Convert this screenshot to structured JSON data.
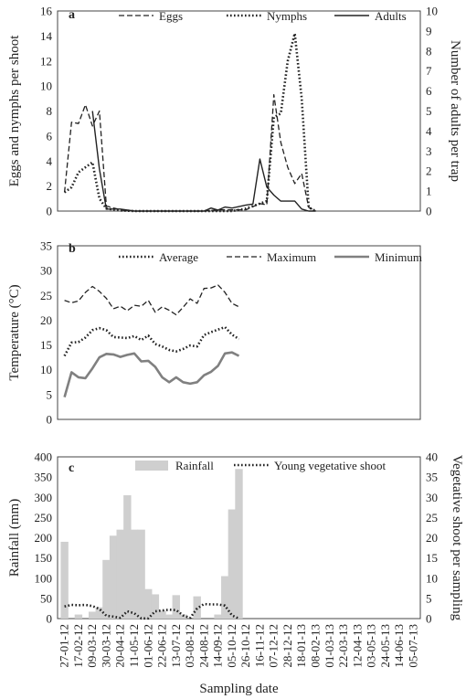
{
  "chart_data": [
    {
      "panel": "a",
      "type": "line",
      "x": [
        "27-01-12",
        "17-02-12",
        "09-03-12",
        "30-03-12",
        "20-04-12",
        "11-05-12",
        "01-06-12",
        "22-06-12",
        "13-07-12",
        "03-08-12",
        "24-08-12",
        "14-09-12",
        "05-10-12",
        "26-10-12",
        "16-11-12",
        "07-12-12",
        "28-12-12",
        "18-01-13",
        "08-02-13",
        "01-03-13",
        "22-03-13",
        "12-04-13",
        "03-05-13",
        "24-05-13",
        "14-06-13",
        "05-07-13"
      ],
      "ylabel": "Eggs and nymphs per shoot",
      "y2label": "Number of adults per trap",
      "ylim": [
        0,
        16
      ],
      "y2lim": [
        0,
        10
      ],
      "yticks": [
        "0",
        "2",
        "4",
        "6",
        "8",
        "10",
        "12",
        "14",
        "16"
      ],
      "y2ticks": [
        "0",
        "1",
        "2",
        "3",
        "4",
        "5",
        "6",
        "7",
        "8",
        "9",
        "10"
      ],
      "series": [
        {
          "name": "Eggs",
          "axis": "left",
          "style": "dashed",
          "values": [
            [
              0,
              1.5
            ],
            [
              0.5,
              7.1
            ],
            [
              1,
              7.0
            ],
            [
              1.5,
              8.5
            ],
            [
              2,
              6.8
            ],
            [
              2.5,
              8.0
            ],
            [
              3,
              0.4
            ],
            [
              4,
              0.1
            ],
            [
              5,
              0
            ],
            [
              6,
              0
            ],
            [
              7,
              0
            ],
            [
              8,
              0
            ],
            [
              9,
              0
            ],
            [
              10,
              0
            ],
            [
              11,
              0.1
            ],
            [
              12,
              0.1
            ],
            [
              13,
              0.1
            ],
            [
              14,
              0.6
            ],
            [
              14.5,
              0.5
            ],
            [
              15,
              9.3
            ],
            [
              15.5,
              5.5
            ],
            [
              16,
              3.5
            ],
            [
              16.5,
              2.2
            ],
            [
              17,
              3.0
            ],
            [
              17.5,
              0.3
            ],
            [
              18,
              0
            ]
          ]
        },
        {
          "name": "Nymphs",
          "axis": "left",
          "style": "dotted",
          "values": [
            [
              0,
              1.5
            ],
            [
              0.5,
              1.9
            ],
            [
              1,
              3.1
            ],
            [
              1.5,
              3.5
            ],
            [
              2,
              3.9
            ],
            [
              2.5,
              1.0
            ],
            [
              3,
              0.2
            ],
            [
              4,
              0.05
            ],
            [
              5,
              0
            ],
            [
              6,
              0
            ],
            [
              7,
              0
            ],
            [
              8,
              0
            ],
            [
              9,
              0
            ],
            [
              10,
              0
            ],
            [
              11,
              0
            ],
            [
              12,
              0
            ],
            [
              13,
              0.2
            ],
            [
              14,
              0.6
            ],
            [
              14.5,
              0.8
            ],
            [
              15,
              7.5
            ],
            [
              15.5,
              7.8
            ],
            [
              16,
              12.0
            ],
            [
              16.5,
              14.2
            ],
            [
              17,
              9.0
            ],
            [
              17.5,
              0.3
            ],
            [
              18,
              0
            ]
          ]
        },
        {
          "name": "Adults",
          "axis": "right",
          "style": "solid",
          "values": [
            [
              2,
              5.0
            ],
            [
              2.5,
              2.1
            ],
            [
              3,
              0.1
            ],
            [
              4,
              0.1
            ],
            [
              5,
              0
            ],
            [
              6,
              0
            ],
            [
              7,
              0
            ],
            [
              8,
              0
            ],
            [
              9,
              0
            ],
            [
              10,
              0
            ],
            [
              10.5,
              0.15
            ],
            [
              11,
              0.05
            ],
            [
              11.5,
              0.2
            ],
            [
              12,
              0.15
            ],
            [
              13,
              0.3
            ],
            [
              13.5,
              0.35
            ],
            [
              14,
              2.6
            ],
            [
              14.5,
              1.2
            ],
            [
              15,
              0.8
            ],
            [
              15.5,
              0.5
            ],
            [
              16,
              0.5
            ],
            [
              16.5,
              0.5
            ],
            [
              17,
              0.1
            ],
            [
              17.5,
              0
            ],
            [
              18,
              0
            ]
          ]
        }
      ]
    },
    {
      "panel": "b",
      "type": "line",
      "ylabel": "Temperature (°C)",
      "ylim": [
        0,
        35
      ],
      "yticks": [
        "0",
        "5",
        "10",
        "15",
        "20",
        "25",
        "30",
        "35"
      ],
      "series": [
        {
          "name": "Average",
          "style": "dotted",
          "values": [
            [
              0,
              12.8
            ],
            [
              0.5,
              15.5
            ],
            [
              1,
              15.6
            ],
            [
              1.5,
              16.5
            ],
            [
              2,
              18.0
            ],
            [
              2.5,
              18.4
            ],
            [
              3,
              18.0
            ],
            [
              3.5,
              16.6
            ],
            [
              4,
              16.5
            ],
            [
              4.5,
              16.4
            ],
            [
              5,
              16.8
            ],
            [
              5.5,
              16.0
            ],
            [
              6,
              16.9
            ],
            [
              6.5,
              15.2
            ],
            [
              7,
              14.7
            ],
            [
              7.5,
              14.0
            ],
            [
              8,
              13.7
            ],
            [
              8.5,
              14.2
            ],
            [
              9,
              14.9
            ],
            [
              9.5,
              14.7
            ],
            [
              10,
              17.0
            ],
            [
              10.5,
              17.6
            ],
            [
              11,
              18.1
            ],
            [
              11.5,
              18.6
            ],
            [
              12,
              17.1
            ],
            [
              12.5,
              16.2
            ]
          ]
        },
        {
          "name": "Maximum",
          "style": "dashed",
          "values": [
            [
              0,
              24.0
            ],
            [
              0.5,
              23.5
            ],
            [
              1,
              23.9
            ],
            [
              1.5,
              25.6
            ],
            [
              2,
              26.8
            ],
            [
              2.5,
              25.8
            ],
            [
              3,
              24.4
            ],
            [
              3.5,
              22.3
            ],
            [
              4,
              22.8
            ],
            [
              4.5,
              21.9
            ],
            [
              5,
              23.0
            ],
            [
              5.5,
              22.8
            ],
            [
              6,
              24.0
            ],
            [
              6.5,
              21.6
            ],
            [
              7,
              22.7
            ],
            [
              7.5,
              22.0
            ],
            [
              8,
              21.1
            ],
            [
              8.5,
              22.6
            ],
            [
              9,
              24.3
            ],
            [
              9.5,
              23.4
            ],
            [
              10,
              26.4
            ],
            [
              10.5,
              26.5
            ],
            [
              11,
              27.1
            ],
            [
              11.5,
              25.6
            ],
            [
              12,
              23.4
            ],
            [
              12.5,
              22.7
            ]
          ]
        },
        {
          "name": "Minimum",
          "style": "solid",
          "values": [
            [
              0,
              4.5
            ],
            [
              0.5,
              9.5
            ],
            [
              1,
              8.5
            ],
            [
              1.5,
              8.3
            ],
            [
              2,
              10.3
            ],
            [
              2.5,
              12.5
            ],
            [
              3,
              13.2
            ],
            [
              3.5,
              13.1
            ],
            [
              4,
              12.6
            ],
            [
              4.5,
              13.0
            ],
            [
              5,
              13.3
            ],
            [
              5.5,
              11.7
            ],
            [
              6,
              11.8
            ],
            [
              6.5,
              10.6
            ],
            [
              7,
              8.5
            ],
            [
              7.5,
              7.5
            ],
            [
              8,
              8.5
            ],
            [
              8.5,
              7.5
            ],
            [
              9,
              7.2
            ],
            [
              9.5,
              7.5
            ],
            [
              10,
              8.9
            ],
            [
              10.5,
              9.6
            ],
            [
              11,
              10.8
            ],
            [
              11.5,
              13.3
            ],
            [
              12,
              13.5
            ],
            [
              12.5,
              12.8
            ]
          ]
        }
      ]
    },
    {
      "panel": "c",
      "type": "bar+line",
      "xlabel": "Sampling date",
      "ylabel": "Rainfall (mm)",
      "y2label": "Vegetative shoot per sampling",
      "ylim": [
        0,
        400
      ],
      "y2lim": [
        0,
        40
      ],
      "yticks": [
        "0",
        "50",
        "100",
        "150",
        "200",
        "250",
        "300",
        "350",
        "400"
      ],
      "y2ticks": [
        "0",
        "5",
        "10",
        "15",
        "20",
        "25",
        "30",
        "35",
        "40"
      ],
      "series": [
        {
          "name": "Rainfall",
          "kind": "bar",
          "values": [
            [
              0,
              190
            ],
            [
              1,
              10
            ],
            [
              2,
              17
            ],
            [
              2.5,
              28
            ],
            [
              3,
              145
            ],
            [
              3.5,
              205
            ],
            [
              4,
              220
            ],
            [
              4.5,
              305
            ],
            [
              5,
              220
            ],
            [
              5.5,
              220
            ],
            [
              6,
              73
            ],
            [
              6.5,
              60
            ],
            [
              7,
              20
            ],
            [
              7.5,
              10
            ],
            [
              8,
              58
            ],
            [
              8.5,
              10
            ],
            [
              9.5,
              55
            ],
            [
              11,
              10
            ],
            [
              11.5,
              105
            ],
            [
              12,
              270
            ],
            [
              12.5,
              370
            ]
          ]
        },
        {
          "name": "Young vegetative shoot",
          "kind": "line",
          "style": "dotted",
          "values": [
            [
              0,
              30
            ],
            [
              0.5,
              34
            ],
            [
              1,
              33
            ],
            [
              1.5,
              34
            ],
            [
              2,
              31
            ],
            [
              2.5,
              24
            ],
            [
              3,
              7
            ],
            [
              3.5,
              5
            ],
            [
              4,
              1.5
            ],
            [
              4.5,
              18
            ],
            [
              5,
              13
            ],
            [
              5.5,
              0.5
            ],
            [
              6,
              0.5
            ],
            [
              6.5,
              18
            ],
            [
              7,
              20
            ],
            [
              7.5,
              22
            ],
            [
              8,
              21
            ],
            [
              8.5,
              8
            ],
            [
              9,
              1.5
            ],
            [
              9.5,
              25
            ],
            [
              10,
              36
            ],
            [
              10.5,
              35
            ],
            [
              11,
              35
            ],
            [
              11.5,
              32
            ],
            [
              12,
              8
            ],
            [
              12.5,
              0
            ]
          ]
        }
      ]
    }
  ]
}
